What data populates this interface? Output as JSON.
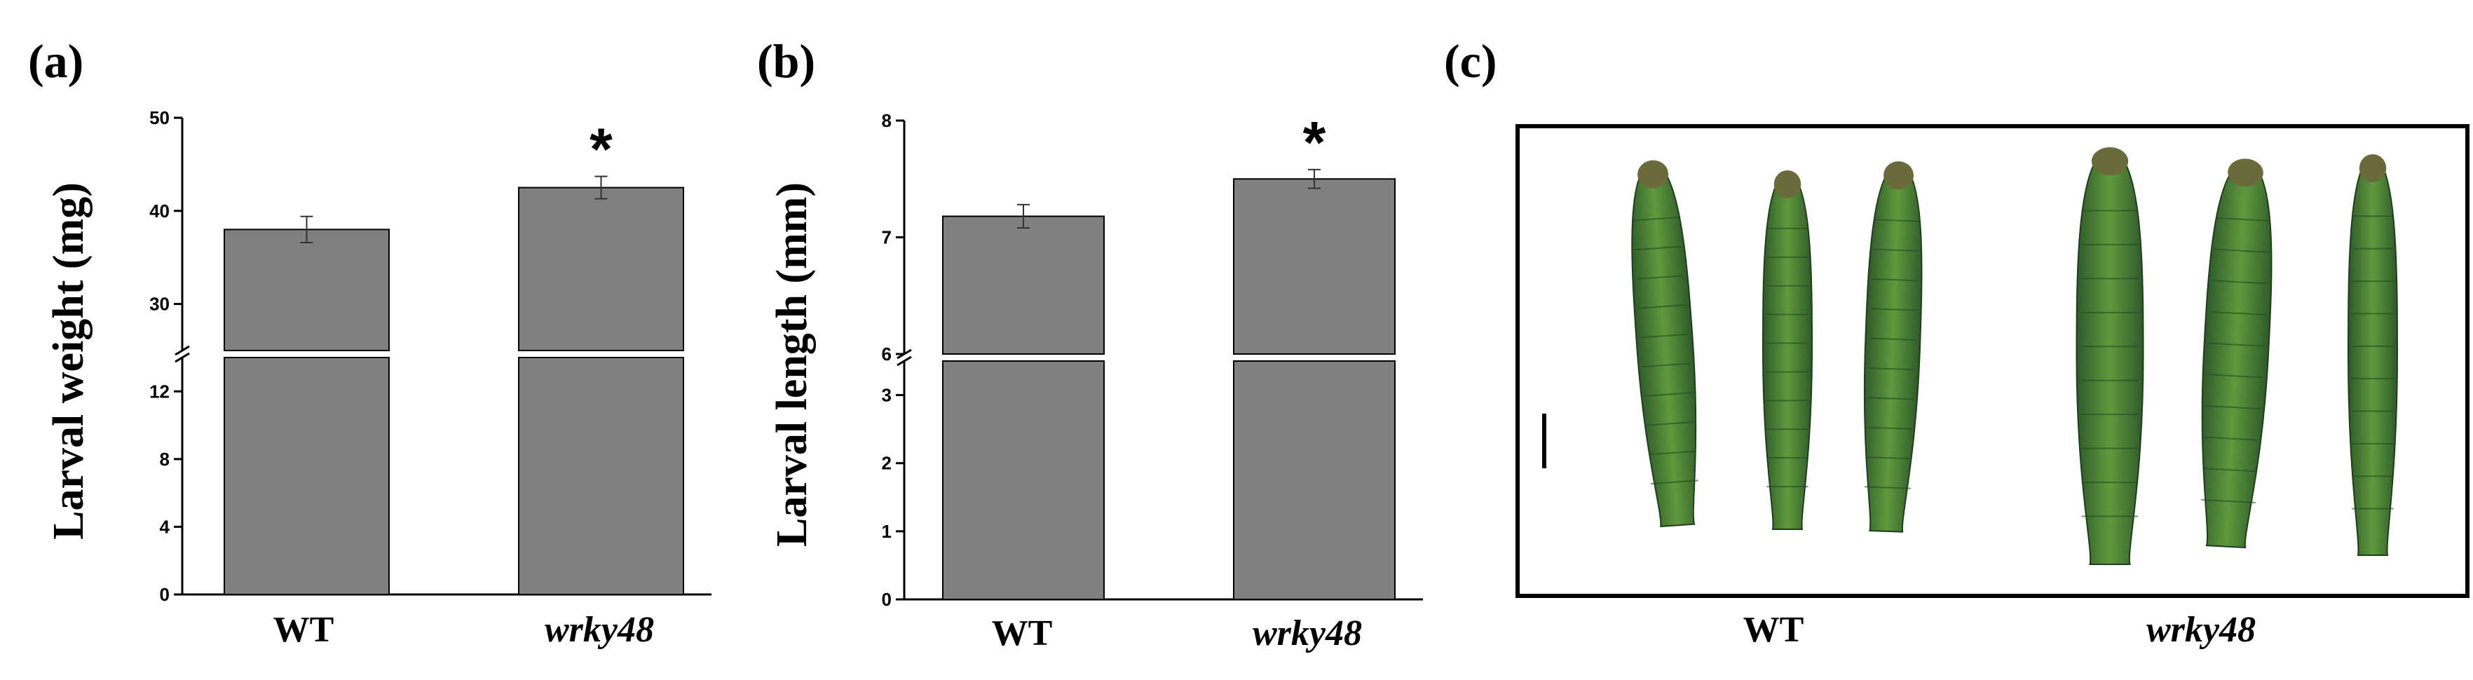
{
  "colors": {
    "bar": "#808080",
    "axis": "#000000",
    "photo_bg": "#ffffff",
    "larva_dark": "#2f5a2a",
    "larva_light": "#5e9a3c"
  },
  "chart_data": [
    {
      "type": "bar",
      "panel_label": "(a)",
      "ylabel": "Larval weight (mg)",
      "categories": [
        "WT",
        "wrky48"
      ],
      "values": [
        38,
        42.5
      ],
      "errors": [
        1.4,
        1.2
      ],
      "significance": [
        "",
        "*"
      ],
      "axis_break": {
        "lower": [
          0,
          14
        ],
        "upper": [
          25,
          50
        ]
      },
      "lower_ticks": [
        0,
        4,
        8,
        12
      ],
      "upper_ticks": [
        30,
        40,
        50
      ],
      "lower_tick_labels": [
        "0",
        "4",
        "8",
        "12"
      ],
      "upper_tick_labels": [
        "30",
        "40",
        "50"
      ]
    },
    {
      "type": "bar",
      "panel_label": "(b)",
      "ylabel": "Larval length (mm)",
      "categories": [
        "WT",
        "wrky48"
      ],
      "values": [
        7.18,
        7.5
      ],
      "errors": [
        0.1,
        0.08
      ],
      "significance": [
        "",
        "*"
      ],
      "axis_break": {
        "lower": [
          0,
          3.5
        ],
        "upper": [
          6,
          8
        ]
      },
      "lower_ticks": [
        0,
        1,
        2,
        3
      ],
      "upper_ticks": [
        6,
        7,
        8
      ],
      "lower_tick_labels": [
        "0",
        "1",
        "2",
        "3"
      ],
      "upper_tick_labels": [
        "6",
        "7",
        "8"
      ]
    }
  ],
  "photo": {
    "panel_label": "(c)",
    "group_labels": [
      "WT",
      "wrky48"
    ],
    "larvae_per_group": 3
  }
}
